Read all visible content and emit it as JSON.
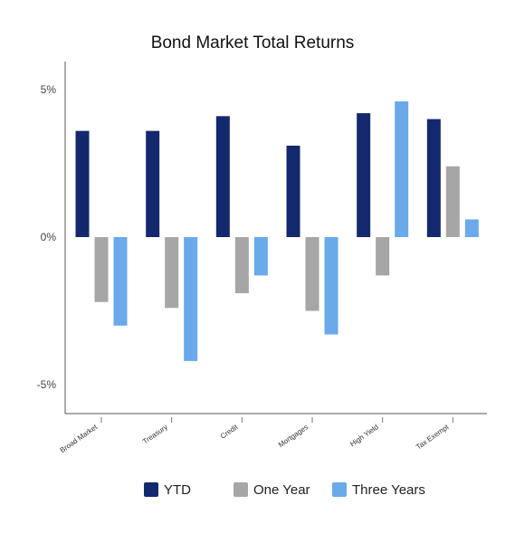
{
  "chart_data": {
    "type": "bar",
    "title": "Bond Market Total Returns",
    "xlabel": "",
    "ylabel": "",
    "categories": [
      "Broad Market",
      "Treasury",
      "Credit",
      "Mortgages",
      "High Yield",
      "Tax Exempt"
    ],
    "series": [
      {
        "name": "YTD",
        "color": "#14286e",
        "values": [
          3.6,
          3.6,
          4.1,
          3.1,
          4.2,
          4.0
        ]
      },
      {
        "name": "One Year",
        "color": "#a6a6a6",
        "values": [
          -2.2,
          -2.4,
          -1.9,
          -2.5,
          -1.3,
          2.4
        ]
      },
      {
        "name": "Three Years",
        "color": "#6aa9ea",
        "values": [
          -3.0,
          -4.2,
          -1.3,
          -3.3,
          4.6,
          0.6
        ]
      }
    ],
    "ylim": [
      -6,
      6
    ],
    "yticks": [
      {
        "value": 5,
        "label": "5%"
      },
      {
        "value": 0,
        "label": "0%"
      },
      {
        "value": -5,
        "label": "-5%"
      }
    ],
    "grid": false,
    "legend": "bottom"
  }
}
